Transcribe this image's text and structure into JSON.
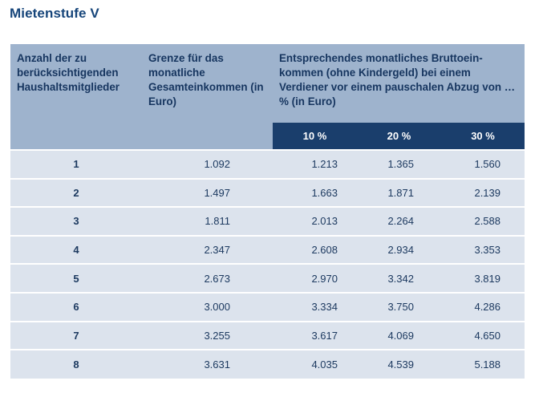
{
  "title": "Mietenstufe V",
  "header": {
    "col1": "Anzahl der zu berücksichtigenden Haushaltsmitglieder",
    "col2": "Grenze für das monatliche Gesamteinkommen (in Euro)",
    "col3": "Entsprechendes monatliches Bruttoein-kommen (ohne Kindergeld) bei einem Verdiener vor einem pauschalen Abzug von … % (in Euro)",
    "pct1": "10 %",
    "pct2": "20 %",
    "pct3": "30 %"
  },
  "rows": [
    {
      "n": "1",
      "limit": "1.092",
      "p10": "1.213",
      "p20": "1.365",
      "p30": "1.560"
    },
    {
      "n": "2",
      "limit": "1.497",
      "p10": "1.663",
      "p20": "1.871",
      "p30": "2.139"
    },
    {
      "n": "3",
      "limit": "1.811",
      "p10": "2.013",
      "p20": "2.264",
      "p30": "2.588"
    },
    {
      "n": "4",
      "limit": "2.347",
      "p10": "2.608",
      "p20": "2.934",
      "p30": "3.353"
    },
    {
      "n": "5",
      "limit": "2.673",
      "p10": "2.970",
      "p20": "3.342",
      "p30": "3.819"
    },
    {
      "n": "6",
      "limit": "3.000",
      "p10": "3.334",
      "p20": "3.750",
      "p30": "4.286"
    },
    {
      "n": "7",
      "limit": "3.255",
      "p10": "3.617",
      "p20": "4.069",
      "p30": "4.650"
    },
    {
      "n": "8",
      "limit": "3.631",
      "p10": "4.035",
      "p20": "4.539",
      "p30": "5.188"
    }
  ],
  "colors": {
    "header_bg": "#9eb3cd",
    "subheader_bg": "#1a3e6c",
    "row_bg": "#dce3ed",
    "title": "#16457a"
  }
}
